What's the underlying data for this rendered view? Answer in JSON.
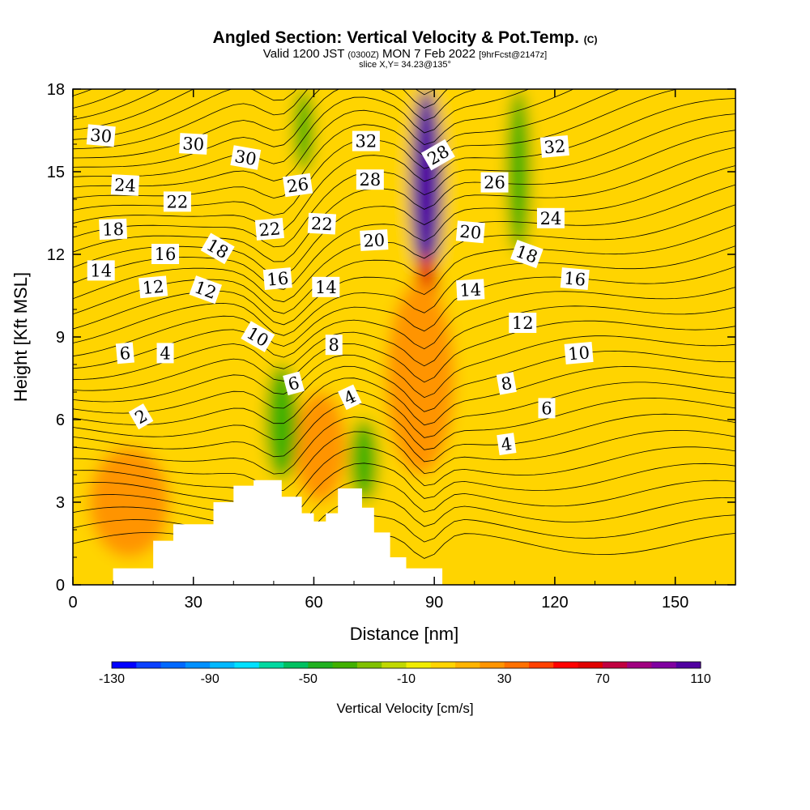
{
  "header": {
    "title": "Angled Section: Vertical Velocity & Pot.Temp.",
    "title_mark": "(C)",
    "valid_prefix": "Valid 1200 JST",
    "valid_utc": "(0300Z)",
    "valid_date": "MON 7 Feb 2022",
    "forecast": "[9hrFcst@2147z]",
    "slice": "slice X,Y= 34.23@135°"
  },
  "chart_data": {
    "type": "heatmap",
    "xlabel": "Distance [nm]",
    "ylabel": "Height [Kft MSL]",
    "xlim": [
      0,
      165
    ],
    "ylim": [
      0,
      18
    ],
    "xticks": [
      0,
      30,
      60,
      90,
      120,
      150
    ],
    "yticks": [
      0,
      3,
      6,
      9,
      12,
      15,
      18
    ],
    "terrain": [
      [
        0,
        0
      ],
      [
        10,
        0
      ],
      [
        10,
        0.6
      ],
      [
        20,
        0.6
      ],
      [
        20,
        1.6
      ],
      [
        25,
        1.6
      ],
      [
        25,
        2.2
      ],
      [
        35,
        2.2
      ],
      [
        35,
        3.0
      ],
      [
        40,
        3.0
      ],
      [
        40,
        3.6
      ],
      [
        45,
        3.6
      ],
      [
        45,
        3.8
      ],
      [
        52,
        3.8
      ],
      [
        52,
        3.2
      ],
      [
        57,
        3.2
      ],
      [
        57,
        2.6
      ],
      [
        60,
        2.6
      ],
      [
        60,
        2.3
      ],
      [
        63,
        2.3
      ],
      [
        63,
        2.6
      ],
      [
        66,
        2.6
      ],
      [
        66,
        3.5
      ],
      [
        72,
        3.5
      ],
      [
        72,
        2.8
      ],
      [
        75,
        2.8
      ],
      [
        75,
        1.9
      ],
      [
        79,
        1.9
      ],
      [
        79,
        1.0
      ],
      [
        83,
        1.0
      ],
      [
        83,
        0.6
      ],
      [
        92,
        0.6
      ],
      [
        92,
        0
      ]
    ],
    "vertical_velocity_areas": [
      {
        "kind": "updraft",
        "w": 100,
        "x": [
          84,
          92
        ],
        "z": [
          11,
          18
        ]
      },
      {
        "kind": "updraft",
        "w": 60,
        "x": [
          85,
          91
        ],
        "z": [
          9,
          12
        ]
      },
      {
        "kind": "updraft",
        "w": 20,
        "x": [
          78,
          95
        ],
        "z": [
          4,
          11
        ]
      },
      {
        "kind": "updraft",
        "w": 20,
        "x": [
          4,
          24
        ],
        "z": [
          1,
          5
        ]
      },
      {
        "kind": "updraft",
        "w": 20,
        "x": [
          55,
          68
        ],
        "z": [
          3,
          7
        ]
      },
      {
        "kind": "downdraft",
        "w": -40,
        "x": [
          48,
          56
        ],
        "z": [
          3.8,
          8
        ]
      },
      {
        "kind": "downdraft",
        "w": -40,
        "x": [
          69,
          76
        ],
        "z": [
          3,
          6
        ]
      },
      {
        "kind": "downdraft",
        "w": -40,
        "x": [
          108,
          114
        ],
        "z": [
          12,
          18
        ]
      },
      {
        "kind": "downdraft",
        "w": -40,
        "x": [
          55,
          60
        ],
        "z": [
          15,
          18
        ]
      }
    ],
    "colorbar": {
      "min": -130,
      "max": 110,
      "step": 10,
      "tick_values": [
        -130,
        -90,
        -50,
        -10,
        30,
        70,
        110
      ],
      "tick_labels": [
        "-130",
        "-90",
        "-50",
        "-10",
        "30",
        "70",
        "110"
      ],
      "label": "Vertical Velocity [cm/s]",
      "colors": [
        "#0000ff",
        "#0a40ff",
        "#0068ff",
        "#0090ff",
        "#00b8ff",
        "#00e0ff",
        "#00d8a0",
        "#00c060",
        "#20b020",
        "#40b000",
        "#80c000",
        "#c0d800",
        "#f0ec00",
        "#ffd400",
        "#ffb400",
        "#ff9400",
        "#ff7000",
        "#ff4000",
        "#ff0000",
        "#e00000",
        "#c00040",
        "#a00080",
        "#8000a0",
        "#5000a0"
      ]
    },
    "contour_labels": [
      {
        "text": "30",
        "x": 7,
        "y": 16.3,
        "rot": 5
      },
      {
        "text": "30",
        "x": 30,
        "y": 16.0,
        "rot": 3
      },
      {
        "text": "30",
        "x": 43,
        "y": 15.5,
        "rot": 10
      },
      {
        "text": "32",
        "x": 73,
        "y": 16.1,
        "rot": 0
      },
      {
        "text": "32",
        "x": 120,
        "y": 15.9,
        "rot": -5
      },
      {
        "text": "28",
        "x": 74,
        "y": 14.7,
        "rot": 0
      },
      {
        "text": "28",
        "x": 91,
        "y": 15.6,
        "rot": -30
      },
      {
        "text": "26",
        "x": 56,
        "y": 14.5,
        "rot": -8
      },
      {
        "text": "26",
        "x": 105,
        "y": 14.6,
        "rot": 0
      },
      {
        "text": "24",
        "x": 13,
        "y": 14.5,
        "rot": 3
      },
      {
        "text": "24",
        "x": 119,
        "y": 13.3,
        "rot": 0
      },
      {
        "text": "22",
        "x": 26,
        "y": 13.9,
        "rot": 0
      },
      {
        "text": "22",
        "x": 49,
        "y": 12.9,
        "rot": -5
      },
      {
        "text": "22",
        "x": 62,
        "y": 13.1,
        "rot": 3
      },
      {
        "text": "20",
        "x": 75,
        "y": 12.5,
        "rot": -3
      },
      {
        "text": "20",
        "x": 99,
        "y": 12.8,
        "rot": 5
      },
      {
        "text": "18",
        "x": 10,
        "y": 12.9,
        "rot": -2
      },
      {
        "text": "18",
        "x": 36,
        "y": 12.2,
        "rot": 30
      },
      {
        "text": "18",
        "x": 113,
        "y": 12.0,
        "rot": 20
      },
      {
        "text": "16",
        "x": 23,
        "y": 12.0,
        "rot": 0
      },
      {
        "text": "16",
        "x": 51,
        "y": 11.1,
        "rot": -5
      },
      {
        "text": "16",
        "x": 125,
        "y": 11.1,
        "rot": 5
      },
      {
        "text": "14",
        "x": 7,
        "y": 11.4,
        "rot": 0
      },
      {
        "text": "14",
        "x": 63,
        "y": 10.8,
        "rot": 0
      },
      {
        "text": "14",
        "x": 99,
        "y": 10.7,
        "rot": -3
      },
      {
        "text": "12",
        "x": 20,
        "y": 10.8,
        "rot": -5
      },
      {
        "text": "12",
        "x": 33,
        "y": 10.7,
        "rot": 20
      },
      {
        "text": "12",
        "x": 112,
        "y": 9.5,
        "rot": 0
      },
      {
        "text": "10",
        "x": 46,
        "y": 9.0,
        "rot": 30
      },
      {
        "text": "10",
        "x": 126,
        "y": 8.4,
        "rot": -5
      },
      {
        "text": "8",
        "x": 65,
        "y": 8.7,
        "rot": 0
      },
      {
        "text": "8",
        "x": 108,
        "y": 7.3,
        "rot": -10
      },
      {
        "text": "6",
        "x": 13,
        "y": 8.4,
        "rot": -5
      },
      {
        "text": "6",
        "x": 55,
        "y": 7.3,
        "rot": -15
      },
      {
        "text": "6",
        "x": 118,
        "y": 6.4,
        "rot": 0
      },
      {
        "text": "4",
        "x": 23,
        "y": 8.4,
        "rot": 0
      },
      {
        "text": "4",
        "x": 69,
        "y": 6.8,
        "rot": -25
      },
      {
        "text": "4",
        "x": 108,
        "y": 5.1,
        "rot": -8
      },
      {
        "text": "2",
        "x": 17,
        "y": 6.1,
        "rot": -30
      }
    ]
  }
}
